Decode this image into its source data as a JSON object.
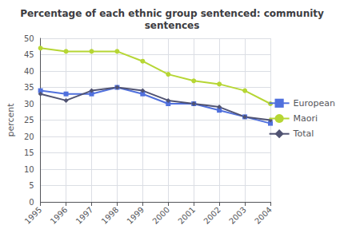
{
  "chart_data": {
    "type": "line",
    "title": "Percentage of each ethnic group sentenced: community\nsentences",
    "ylabel": "percent",
    "categories": [
      "1995",
      "1996",
      "1997",
      "1998",
      "1999",
      "2000",
      "2001",
      "2002",
      "2003",
      "2004"
    ],
    "series": [
      {
        "name": "European",
        "marker": "square",
        "values": [
          34,
          33,
          33,
          35,
          33,
          30,
          30,
          28,
          26,
          24
        ]
      },
      {
        "name": "Maori",
        "marker": "circle",
        "values": [
          47,
          46,
          46,
          46,
          43,
          39,
          37,
          36,
          34,
          30
        ]
      },
      {
        "name": "Total",
        "marker": "diamond",
        "values": [
          33,
          31,
          34,
          35,
          34,
          31,
          30,
          29,
          26,
          25
        ]
      }
    ],
    "ylim": [
      0,
      50
    ],
    "yticks": [
      0,
      5,
      10,
      15,
      20,
      25,
      30,
      35,
      40,
      45,
      50
    ],
    "grid": true,
    "legend": "right"
  }
}
